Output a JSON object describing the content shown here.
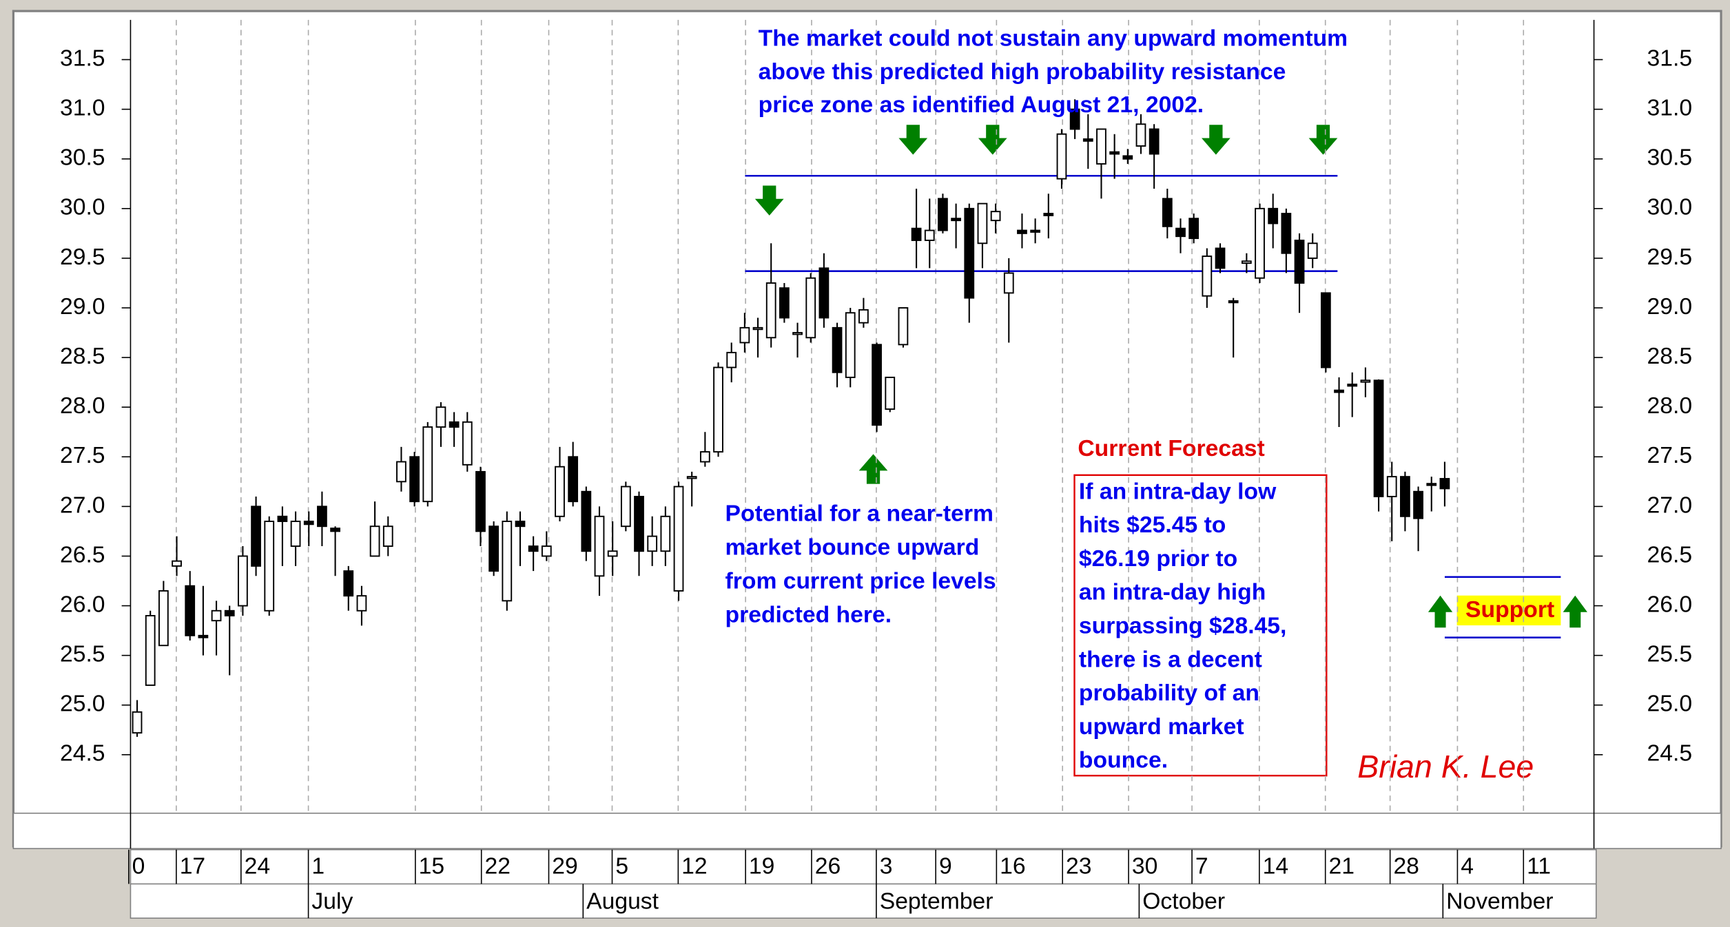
{
  "chart_data": {
    "type": "candlestick",
    "open": [
      24.72,
      25.2,
      25.6,
      26.4,
      26.2,
      25.7,
      25.85,
      25.95,
      26.0,
      27.0,
      25.95,
      26.9,
      26.6,
      26.85,
      27.0,
      26.78,
      26.35,
      25.95,
      26.5,
      26.6,
      27.25,
      27.5,
      27.05,
      27.8,
      27.85,
      27.42,
      27.35,
      26.8,
      26.05,
      26.85,
      26.6,
      26.5,
      26.9,
      27.5,
      27.15,
      26.3,
      26.5,
      26.8,
      27.1,
      26.55,
      26.55,
      26.15,
      27.3,
      27.45,
      27.55,
      28.4,
      28.65,
      28.8,
      28.7,
      29.2,
      28.75,
      28.7,
      29.4,
      28.8,
      28.3,
      28.85,
      28.63,
      27.98,
      28.63,
      29.8,
      29.68,
      30.1,
      29.9,
      30.0,
      29.65,
      29.88,
      29.15,
      29.78,
      29.78,
      29.95,
      30.3,
      31.0,
      30.7,
      30.45,
      30.57,
      30.53,
      30.63,
      30.8,
      30.1,
      29.8,
      29.9,
      29.12,
      29.6,
      29.07,
      29.45,
      29.3,
      30.0,
      29.95,
      29.68,
      29.5,
      29.15,
      28.17,
      28.23,
      28.27,
      28.27,
      27.1,
      27.3,
      27.15,
      27.23,
      27.28
    ],
    "high": [
      25.05,
      25.95,
      26.25,
      26.7,
      26.35,
      26.2,
      26.05,
      26.0,
      26.6,
      27.1,
      26.9,
      27.0,
      26.95,
      26.95,
      27.15,
      26.8,
      26.4,
      26.2,
      27.05,
      26.9,
      27.6,
      27.55,
      27.85,
      28.05,
      27.95,
      27.95,
      27.4,
      26.85,
      26.95,
      26.95,
      26.7,
      26.75,
      27.6,
      27.65,
      27.2,
      27.0,
      26.85,
      27.25,
      27.15,
      26.9,
      27.0,
      27.25,
      27.35,
      27.75,
      28.45,
      28.65,
      28.95,
      28.9,
      29.65,
      29.25,
      28.85,
      29.35,
      29.55,
      28.85,
      29.0,
      29.1,
      28.65,
      28.3,
      29.0,
      30.2,
      30.1,
      30.15,
      30.05,
      30.05,
      30.05,
      30.05,
      29.5,
      29.95,
      29.9,
      30.15,
      30.8,
      31.1,
      30.95,
      30.8,
      30.75,
      30.6,
      30.95,
      30.85,
      30.2,
      29.9,
      29.95,
      29.6,
      29.65,
      29.1,
      29.55,
      30.05,
      30.15,
      30.0,
      29.75,
      29.75,
      29.15,
      28.3,
      28.35,
      28.4,
      28.28,
      27.45,
      27.35,
      27.2,
      27.3,
      27.45
    ],
    "low": [
      24.68,
      25.2,
      25.6,
      26.3,
      25.65,
      25.5,
      25.5,
      25.3,
      25.9,
      26.3,
      25.9,
      26.4,
      26.4,
      26.6,
      26.6,
      26.3,
      25.95,
      25.8,
      26.5,
      26.5,
      27.15,
      27.0,
      27.0,
      27.6,
      27.6,
      27.35,
      26.6,
      26.3,
      25.95,
      26.4,
      26.35,
      26.45,
      26.85,
      27.0,
      26.45,
      26.1,
      26.3,
      26.75,
      26.3,
      26.4,
      26.4,
      26.05,
      27.0,
      27.4,
      27.5,
      28.25,
      28.55,
      28.5,
      28.6,
      28.85,
      28.5,
      28.65,
      28.8,
      28.2,
      28.2,
      28.8,
      27.75,
      27.95,
      28.6,
      29.4,
      29.4,
      29.75,
      29.6,
      28.85,
      29.4,
      29.75,
      28.65,
      29.6,
      29.65,
      29.7,
      30.2,
      30.7,
      30.4,
      30.1,
      30.3,
      30.45,
      30.55,
      30.2,
      29.7,
      29.55,
      29.65,
      29.0,
      29.35,
      28.5,
      29.35,
      29.25,
      29.6,
      29.35,
      28.95,
      29.4,
      28.35,
      27.8,
      27.9,
      28.1,
      26.95,
      26.65,
      26.75,
      26.55,
      26.95,
      27.0
    ],
    "close": [
      24.93,
      25.9,
      26.15,
      26.45,
      25.7,
      25.68,
      25.95,
      25.9,
      26.5,
      26.4,
      26.85,
      26.85,
      26.85,
      26.82,
      26.8,
      26.75,
      26.1,
      26.1,
      26.8,
      26.8,
      27.45,
      27.05,
      27.8,
      28.0,
      27.8,
      27.85,
      26.75,
      26.35,
      26.85,
      26.8,
      26.55,
      26.6,
      27.4,
      27.05,
      26.55,
      26.9,
      26.55,
      27.2,
      26.55,
      26.7,
      26.9,
      27.2,
      27.3,
      27.55,
      28.4,
      28.55,
      28.8,
      28.8,
      29.25,
      28.9,
      28.75,
      29.3,
      28.9,
      28.35,
      28.95,
      28.98,
      27.82,
      28.3,
      29.0,
      29.68,
      29.78,
      29.78,
      29.88,
      29.1,
      30.05,
      29.97,
      29.35,
      29.75,
      29.77,
      29.93,
      30.75,
      30.8,
      30.68,
      30.8,
      30.55,
      30.5,
      30.85,
      30.55,
      29.82,
      29.72,
      29.7,
      29.52,
      29.4,
      29.06,
      29.47,
      30.0,
      29.85,
      29.55,
      29.25,
      29.65,
      28.4,
      28.15,
      28.22,
      28.27,
      27.1,
      27.3,
      26.9,
      26.88,
      27.22,
      27.18
    ],
    "ylim": [
      24.0,
      31.9
    ],
    "yticks": [
      24.5,
      {
        "value": 25,
        "label": "25.0"
      },
      25.5,
      {
        "value": 26,
        "label": "26.0"
      },
      26.5,
      {
        "value": 27,
        "label": "27.0"
      },
      27.5,
      {
        "value": 28,
        "label": "28.0"
      },
      28.5,
      {
        "value": 29,
        "label": "29.0"
      },
      29.5,
      {
        "value": 30,
        "label": "30.0"
      },
      30.5,
      {
        "value": 31,
        "label": "31.0"
      },
      31.5
    ],
    "xlim": [
      -0.5,
      110.3
    ],
    "xticks": [
      {
        "value": -0.3,
        "label": "0"
      },
      {
        "value": 3.3,
        "label": "17"
      },
      {
        "value": 8.2,
        "label": "24"
      },
      {
        "value": 13.3,
        "label": "1"
      },
      {
        "value": 21.4,
        "label": "15"
      },
      {
        "value": 26.4,
        "label": "22"
      },
      {
        "value": 31.5,
        "label": "29"
      },
      {
        "value": 36.3,
        "label": "5"
      },
      {
        "value": 41.3,
        "label": "12"
      },
      {
        "value": 46.4,
        "label": "19"
      },
      {
        "value": 51.4,
        "label": "26"
      },
      {
        "value": 56.3,
        "label": "3"
      },
      {
        "value": 60.8,
        "label": "9"
      },
      {
        "value": 65.4,
        "label": "16"
      },
      {
        "value": 70.4,
        "label": "23"
      },
      {
        "value": 75.4,
        "label": "30"
      },
      {
        "value": 80.2,
        "label": "7"
      },
      {
        "value": 85.3,
        "label": "14"
      },
      {
        "value": 90.3,
        "label": "21"
      },
      {
        "value": 95.2,
        "label": "28"
      },
      {
        "value": 100.3,
        "label": "4"
      },
      {
        "value": 105.3,
        "label": "11"
      }
    ],
    "month_ticks": [
      {
        "value": 13.3,
        "label": "July"
      },
      {
        "value": 34.1,
        "label": "August"
      },
      {
        "value": 56.3,
        "label": "September"
      },
      {
        "value": 76.2,
        "label": "October"
      },
      {
        "value": 99.2,
        "label": "November"
      }
    ],
    "resistance_levels": [
      30.33,
      29.37
    ],
    "support_levels": [
      26.29,
      25.68
    ],
    "grid": true,
    "up_color": "#ffffff",
    "down_color": "#000000",
    "level_color": "#0000cc",
    "annotations": {
      "resistance_note": [
        "The market could not sustain any upward momentum",
        "above this predicted high probability resistance",
        " price zone as identified August 21, 2002."
      ],
      "bounce_note": [
        "Potential for a near-term",
        "market bounce upward",
        "from current price levels",
        "predicted here."
      ],
      "forecast_title": "Current Forecast",
      "forecast_note": [
        "If an intra-day low",
        "hits $25.45 to",
        "$26.19 prior to",
        "an intra-day high",
        "surpassing $28.45,",
        "there is a decent",
        "probability of an",
        "upward market",
        "bounce."
      ],
      "support_label": "Support",
      "author": "Brian K. Lee"
    }
  }
}
